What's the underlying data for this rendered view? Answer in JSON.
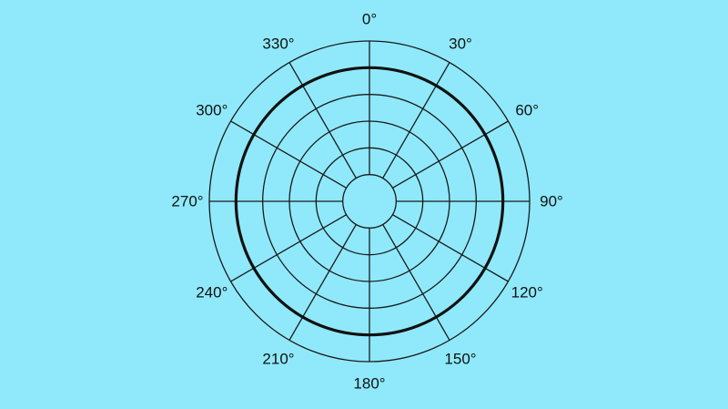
{
  "chart_data": {
    "type": "polar",
    "angle_labels": [
      "0°",
      "30°",
      "60°",
      "90°",
      "120°",
      "150°",
      "180°",
      "210°",
      "240°",
      "270°",
      "300°",
      "330°"
    ],
    "angles_deg": [
      0,
      30,
      60,
      90,
      120,
      150,
      180,
      210,
      240,
      270,
      300,
      330
    ],
    "ring_count": 6,
    "series": [
      {
        "type": "circle",
        "angles_deg": [
          0,
          30,
          60,
          90,
          120,
          150,
          180,
          210,
          240,
          270,
          300,
          330
        ],
        "r": [
          5,
          5,
          5,
          5,
          5,
          5,
          5,
          5,
          5,
          5,
          5,
          5
        ]
      }
    ],
    "rlim": [
      0,
      6
    ],
    "grid": true
  },
  "colors": {
    "background": "#8fe9fb",
    "grid": "#1a1a1a",
    "pattern": "#111111"
  }
}
